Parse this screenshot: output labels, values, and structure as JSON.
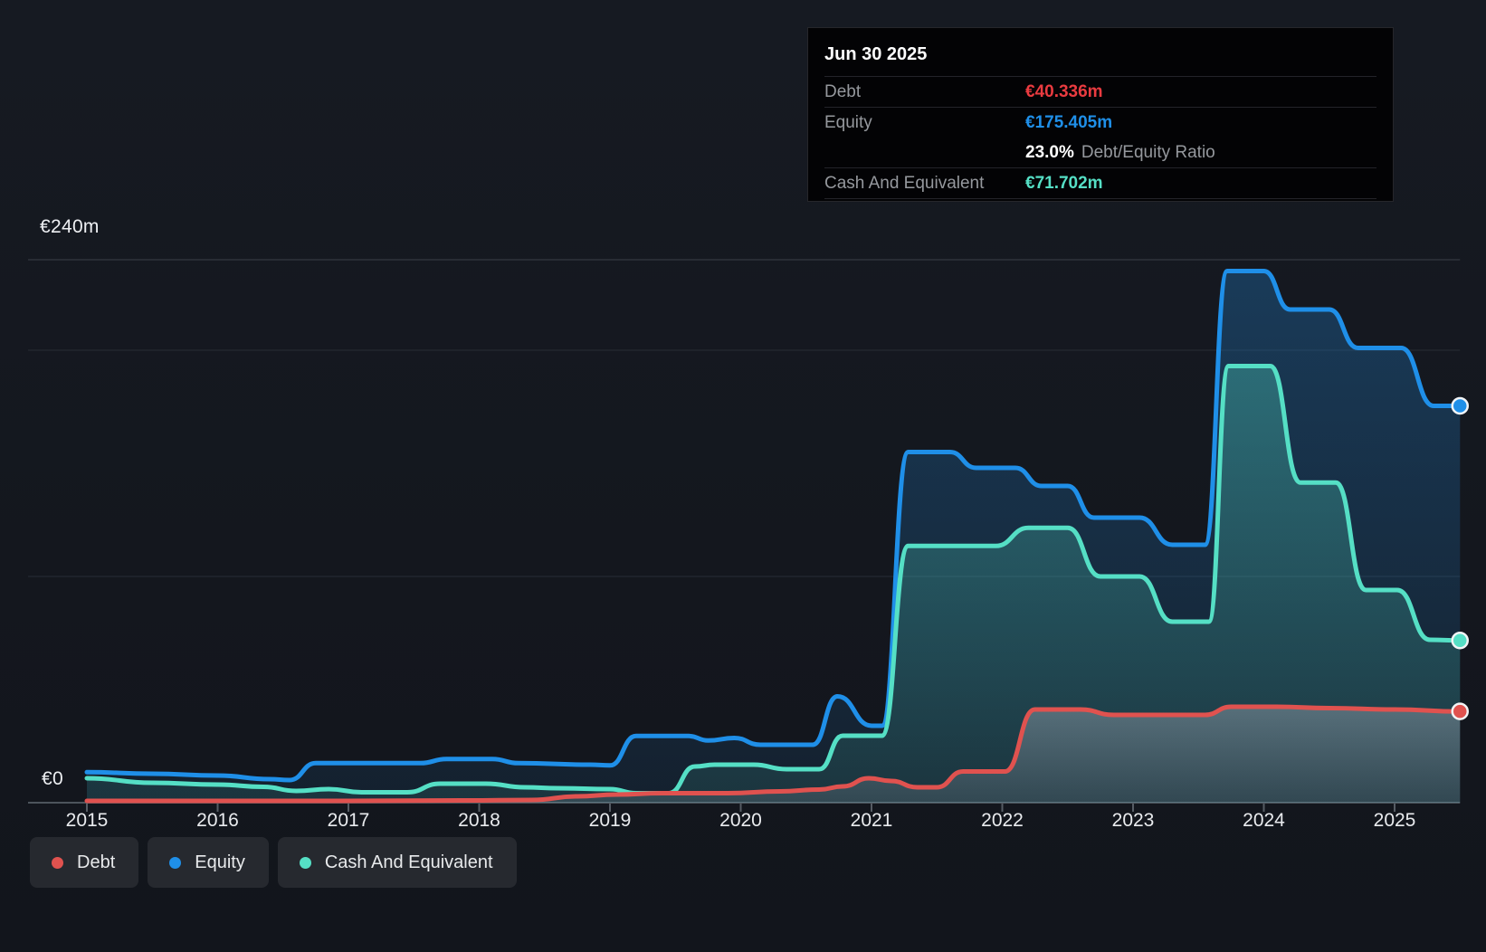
{
  "tooltip": {
    "date": "Jun 30 2025",
    "debt_label": "Debt",
    "debt_value": "€40.336m",
    "equity_label": "Equity",
    "equity_value": "€175.405m",
    "ratio_value": "23.0%",
    "ratio_label": "Debt/Equity Ratio",
    "cash_label": "Cash And Equivalent",
    "cash_value": "€71.702m"
  },
  "y_axis": {
    "top_label": "€240m",
    "zero_label": "€0"
  },
  "x_axis": {
    "years": [
      "2015",
      "2016",
      "2017",
      "2018",
      "2019",
      "2020",
      "2021",
      "2022",
      "2023",
      "2024",
      "2025"
    ]
  },
  "legend": [
    {
      "label": "Debt",
      "color_key": "debt"
    },
    {
      "label": "Equity",
      "color_key": "equity"
    },
    {
      "label": "Cash And Equivalent",
      "color_key": "cash"
    }
  ],
  "colors": {
    "debt": "#e0524f",
    "debt_value": "#ea3b40",
    "equity": "#1f8fe8",
    "cash": "#55dfc5",
    "grid_minor": "#272d35",
    "grid_top": "#3a4048",
    "axis_line": "#4d545c",
    "tick": "#565c64"
  },
  "chart_data": {
    "type": "area",
    "title": "Debt, Equity and Cash history",
    "unit": "EUR millions",
    "x_range": [
      2015,
      2025.5
    ],
    "ylim": [
      0,
      240
    ],
    "gridlines_m": [
      240,
      200,
      100,
      0
    ],
    "grid_on": true,
    "legend_position": "bottom-left",
    "last_point": {
      "date": "Jun 30 2025",
      "debt": 40.336,
      "equity": 175.405,
      "cash": 71.702,
      "debt_equity_ratio_pct": 23.0
    },
    "series": [
      {
        "name": "Equity",
        "color_key": "equity",
        "z": 1,
        "points": [
          [
            2015.0,
            13.5
          ],
          [
            2015.5,
            12.8
          ],
          [
            2016.0,
            12.0
          ],
          [
            2016.4,
            10.4
          ],
          [
            2016.55,
            10.0
          ],
          [
            2016.75,
            17.5
          ],
          [
            2017.55,
            17.5
          ],
          [
            2017.75,
            19.3
          ],
          [
            2018.1,
            19.3
          ],
          [
            2018.3,
            17.5
          ],
          [
            2018.85,
            16.8
          ],
          [
            2019.0,
            16.5
          ],
          [
            2019.2,
            29.5
          ],
          [
            2019.6,
            29.5
          ],
          [
            2019.75,
            27.5
          ],
          [
            2019.95,
            28.6
          ],
          [
            2020.15,
            25.6
          ],
          [
            2020.55,
            25.6
          ],
          [
            2020.74,
            47.0
          ],
          [
            2021.0,
            34.0
          ],
          [
            2021.08,
            34.0
          ],
          [
            2021.28,
            155.0
          ],
          [
            2021.6,
            155.0
          ],
          [
            2021.8,
            148.0
          ],
          [
            2022.1,
            148.0
          ],
          [
            2022.3,
            140.0
          ],
          [
            2022.5,
            140.0
          ],
          [
            2022.7,
            126.0
          ],
          [
            2023.05,
            126.0
          ],
          [
            2023.3,
            114.0
          ],
          [
            2023.55,
            114.0
          ],
          [
            2023.72,
            235.0
          ],
          [
            2024.0,
            235.0
          ],
          [
            2024.2,
            218.0
          ],
          [
            2024.5,
            218.0
          ],
          [
            2024.72,
            201.0
          ],
          [
            2025.05,
            201.0
          ],
          [
            2025.3,
            175.4
          ],
          [
            2025.5,
            175.405
          ]
        ]
      },
      {
        "name": "Cash And Equivalent",
        "color_key": "cash",
        "z": 2,
        "points": [
          [
            2015.0,
            10.8
          ],
          [
            2015.5,
            8.8
          ],
          [
            2016.0,
            8.0
          ],
          [
            2016.35,
            7.0
          ],
          [
            2016.6,
            5.2
          ],
          [
            2016.85,
            6.0
          ],
          [
            2017.1,
            4.6
          ],
          [
            2017.45,
            4.6
          ],
          [
            2017.7,
            8.4
          ],
          [
            2018.05,
            8.4
          ],
          [
            2018.35,
            6.8
          ],
          [
            2018.6,
            6.4
          ],
          [
            2019.0,
            6.0
          ],
          [
            2019.2,
            4.2
          ],
          [
            2019.45,
            4.2
          ],
          [
            2019.65,
            16.0
          ],
          [
            2019.8,
            16.8
          ],
          [
            2020.1,
            16.8
          ],
          [
            2020.35,
            14.8
          ],
          [
            2020.6,
            14.8
          ],
          [
            2020.78,
            29.6
          ],
          [
            2021.08,
            29.6
          ],
          [
            2021.28,
            113.5
          ],
          [
            2021.95,
            113.5
          ],
          [
            2022.2,
            121.5
          ],
          [
            2022.5,
            121.5
          ],
          [
            2022.75,
            100.0
          ],
          [
            2023.05,
            100.0
          ],
          [
            2023.3,
            80.0
          ],
          [
            2023.58,
            80.0
          ],
          [
            2023.73,
            193.0
          ],
          [
            2024.05,
            193.0
          ],
          [
            2024.28,
            141.5
          ],
          [
            2024.55,
            141.5
          ],
          [
            2024.78,
            94.0
          ],
          [
            2025.02,
            94.0
          ],
          [
            2025.27,
            72.0
          ],
          [
            2025.5,
            71.702
          ]
        ]
      },
      {
        "name": "Debt",
        "color_key": "debt",
        "z": 3,
        "points": [
          [
            2015.0,
            0.8
          ],
          [
            2016.0,
            0.8
          ],
          [
            2017.0,
            0.8
          ],
          [
            2017.9,
            1.0
          ],
          [
            2018.4,
            1.2
          ],
          [
            2018.75,
            2.8
          ],
          [
            2019.05,
            3.6
          ],
          [
            2019.4,
            4.2
          ],
          [
            2019.9,
            4.2
          ],
          [
            2020.3,
            5.0
          ],
          [
            2020.6,
            5.8
          ],
          [
            2020.78,
            7.2
          ],
          [
            2020.98,
            10.8
          ],
          [
            2021.15,
            9.6
          ],
          [
            2021.35,
            6.8
          ],
          [
            2021.5,
            6.8
          ],
          [
            2021.7,
            13.8
          ],
          [
            2022.02,
            13.8
          ],
          [
            2022.25,
            41.2
          ],
          [
            2022.6,
            41.2
          ],
          [
            2022.85,
            38.8
          ],
          [
            2023.55,
            38.8
          ],
          [
            2023.75,
            42.4
          ],
          [
            2024.1,
            42.4
          ],
          [
            2024.5,
            41.8
          ],
          [
            2025.0,
            41.2
          ],
          [
            2025.5,
            40.336
          ]
        ]
      }
    ]
  }
}
